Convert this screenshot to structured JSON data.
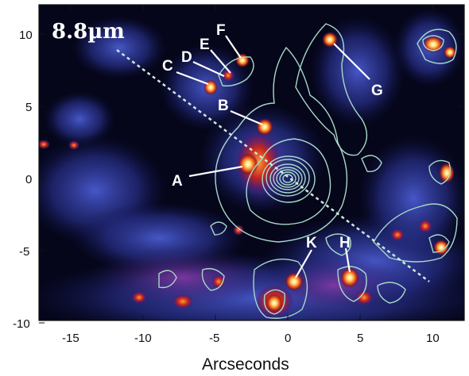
{
  "image": {
    "wavelength_label": "8.8µm",
    "x_axis": {
      "title": "Arcseconds",
      "ticks": [
        "-15",
        "-10",
        "-5",
        "0",
        "5",
        "10"
      ]
    },
    "y_axis": {
      "ticks": [
        "10",
        "5",
        "0",
        "-5",
        "-10"
      ]
    },
    "source_labels": [
      "A",
      "B",
      "C",
      "D",
      "E",
      "F",
      "G",
      "H",
      "K"
    ],
    "colors": {
      "background": "#05061a",
      "faint_emission": "#2b3a8c",
      "bright_emission": "#e0461e",
      "peak_emission": "#fff1a8",
      "contours": "#a8d8c8",
      "dashed_line": "#cfe8de"
    }
  }
}
